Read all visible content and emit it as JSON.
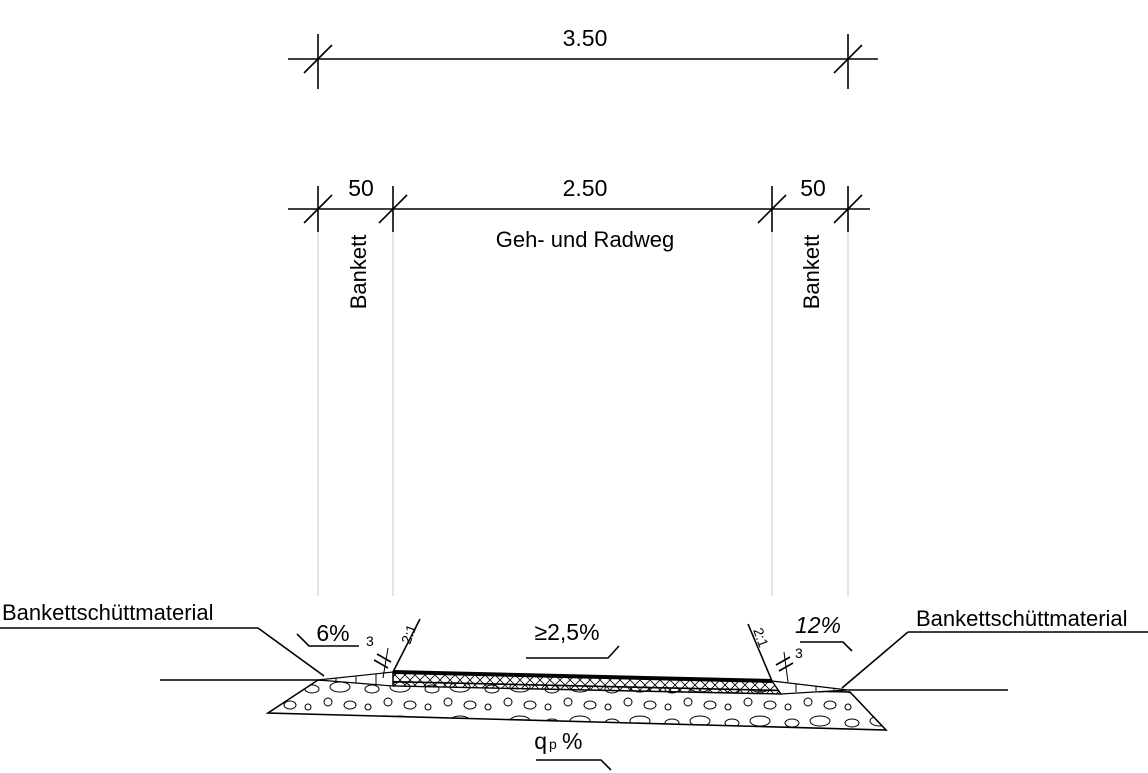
{
  "dimensions": {
    "overall": "3.50",
    "left_shoulder": "50",
    "path_width": "2.50",
    "right_shoulder": "50"
  },
  "labels": {
    "path_name": "Geh- und Radweg",
    "left_shoulder_name": "Bankett",
    "right_shoulder_name": "Bankett",
    "left_material": "Bankettschüttmaterial",
    "right_material": "Bankettschüttmaterial"
  },
  "slopes": {
    "left_shoulder": "6%",
    "path": "≥2,5%",
    "right_shoulder": "12%",
    "subgrade_q": "q",
    "subgrade_sub": "p",
    "subgrade_pct": "%"
  },
  "edge_details": {
    "left_ratio": "2:1",
    "left_value": "3",
    "right_ratio": "2:1",
    "right_value": "3"
  }
}
